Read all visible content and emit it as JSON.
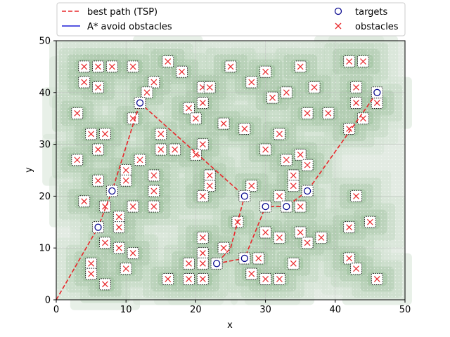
{
  "chart_data": {
    "type": "scatter",
    "xlabel": "x",
    "ylabel": "y",
    "xlim": [
      0,
      50
    ],
    "ylim": [
      0,
      50
    ],
    "xticks": [
      0,
      10,
      20,
      30,
      40,
      50
    ],
    "yticks": [
      0,
      10,
      20,
      30,
      40,
      50
    ],
    "grid": true,
    "legend_position": "top",
    "legend": [
      {
        "label": "best path (TSP)",
        "kind": "dashed-line",
        "color": "#e8282b"
      },
      {
        "label": "A* avoid obstacles",
        "kind": "solid-line",
        "color": "#1f1fd6"
      },
      {
        "label": "targets",
        "kind": "circle",
        "color": "#0b0b8f"
      },
      {
        "label": "obstacles",
        "kind": "x",
        "color": "#e8282b"
      }
    ],
    "series": [
      {
        "name": "best path (TSP)",
        "kind": "dashed-line",
        "color": "#e8282b",
        "points": [
          [
            0,
            0
          ],
          [
            6,
            14
          ],
          [
            8,
            21
          ],
          [
            12,
            38
          ],
          [
            27,
            20
          ],
          [
            25,
            10
          ],
          [
            23,
            7
          ],
          [
            27,
            8
          ],
          [
            30,
            18
          ],
          [
            33,
            18
          ],
          [
            36,
            21
          ],
          [
            46,
            40
          ]
        ]
      },
      {
        "name": "targets",
        "kind": "circle",
        "color": "#0b0b8f",
        "points": [
          [
            6,
            14
          ],
          [
            8,
            21
          ],
          [
            12,
            38
          ],
          [
            27,
            20
          ],
          [
            23,
            7
          ],
          [
            27,
            8
          ],
          [
            30,
            18
          ],
          [
            33,
            18
          ],
          [
            36,
            21
          ],
          [
            46,
            40
          ]
        ]
      },
      {
        "name": "obstacles",
        "kind": "x",
        "color": "#e8282b",
        "points": [
          [
            4,
            45
          ],
          [
            6,
            45
          ],
          [
            8,
            45
          ],
          [
            11,
            45
          ],
          [
            16,
            46
          ],
          [
            18,
            44
          ],
          [
            25,
            45
          ],
          [
            30,
            44
          ],
          [
            35,
            45
          ],
          [
            42,
            46
          ],
          [
            44,
            46
          ],
          [
            4,
            42
          ],
          [
            6,
            41
          ],
          [
            14,
            42
          ],
          [
            13,
            40
          ],
          [
            21,
            41
          ],
          [
            22,
            41
          ],
          [
            28,
            42
          ],
          [
            31,
            39
          ],
          [
            33,
            40
          ],
          [
            37,
            41
          ],
          [
            43,
            41
          ],
          [
            3,
            36
          ],
          [
            11,
            35
          ],
          [
            19,
            37
          ],
          [
            20,
            35
          ],
          [
            21,
            38
          ],
          [
            36,
            36
          ],
          [
            39,
            36
          ],
          [
            43,
            38
          ],
          [
            46,
            38
          ],
          [
            44,
            35
          ],
          [
            5,
            32
          ],
          [
            7,
            32
          ],
          [
            15,
            32
          ],
          [
            24,
            34
          ],
          [
            27,
            33
          ],
          [
            32,
            32
          ],
          [
            42,
            33
          ],
          [
            6,
            29
          ],
          [
            15,
            29
          ],
          [
            17,
            29
          ],
          [
            21,
            30
          ],
          [
            20,
            28
          ],
          [
            30,
            29
          ],
          [
            3,
            27
          ],
          [
            10,
            25
          ],
          [
            12,
            27
          ],
          [
            14,
            24
          ],
          [
            22,
            24
          ],
          [
            33,
            27
          ],
          [
            35,
            28
          ],
          [
            36,
            26
          ],
          [
            6,
            23
          ],
          [
            10,
            23
          ],
          [
            22,
            22
          ],
          [
            28,
            22
          ],
          [
            34,
            24
          ],
          [
            34,
            22
          ],
          [
            4,
            19
          ],
          [
            7,
            18
          ],
          [
            11,
            18
          ],
          [
            14,
            21
          ],
          [
            14,
            18
          ],
          [
            21,
            20
          ],
          [
            32,
            20
          ],
          [
            35,
            18
          ],
          [
            43,
            20
          ],
          [
            9,
            16
          ],
          [
            9,
            14
          ],
          [
            26,
            15
          ],
          [
            42,
            14
          ],
          [
            45,
            15
          ],
          [
            7,
            11
          ],
          [
            9,
            10
          ],
          [
            11,
            9
          ],
          [
            21,
            12
          ],
          [
            21,
            9
          ],
          [
            24,
            10
          ],
          [
            30,
            13
          ],
          [
            32,
            12
          ],
          [
            35,
            13
          ],
          [
            36,
            11
          ],
          [
            38,
            12
          ],
          [
            5,
            7
          ],
          [
            5,
            5
          ],
          [
            10,
            6
          ],
          [
            19,
            7
          ],
          [
            21,
            7
          ],
          [
            29,
            8
          ],
          [
            34,
            7
          ],
          [
            42,
            8
          ],
          [
            43,
            6
          ],
          [
            7,
            3
          ],
          [
            16,
            4
          ],
          [
            19,
            4
          ],
          [
            21,
            4
          ],
          [
            28,
            5
          ],
          [
            30,
            4
          ],
          [
            32,
            4
          ],
          [
            46,
            4
          ]
        ]
      }
    ]
  }
}
